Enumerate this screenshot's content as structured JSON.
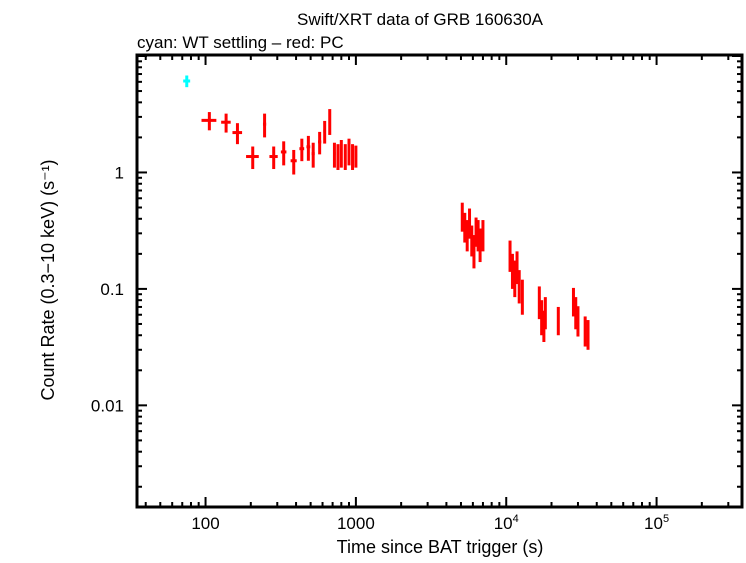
{
  "chart_data": {
    "type": "scatter",
    "title": "Swift/XRT data of GRB 160630A",
    "subtitle": "cyan: WT settling – red: PC",
    "xlabel": "Time since BAT trigger (s)",
    "ylabel": "Count Rate (0.3−10 keV) (s⁻¹)",
    "xscale": "log",
    "yscale": "log",
    "xlim": [
      35,
      370000
    ],
    "ylim": [
      0.00134,
      10.2
    ],
    "x_ticks": [
      {
        "v": 100,
        "label": "100"
      },
      {
        "v": 1000,
        "label": "1000"
      },
      {
        "v": 10000,
        "label": "10",
        "sup": "4"
      },
      {
        "v": 100000,
        "label": "10",
        "sup": "5"
      }
    ],
    "y_ticks": [
      {
        "v": 1,
        "label": "1"
      },
      {
        "v": 0.1,
        "label": "0.1"
      },
      {
        "v": 0.01,
        "label": "0.01"
      }
    ],
    "grid": false,
    "series": [
      {
        "color": "#00ffff",
        "points": [
          [
            75,
            6.1,
            4,
            0.7
          ]
        ]
      },
      {
        "color": "#ff0000",
        "points": [
          [
            106,
            2.8,
            12,
            0.5
          ],
          [
            137,
            2.7,
            10,
            0.5
          ],
          [
            163,
            2.2,
            12,
            0.45
          ],
          [
            206,
            1.37,
            20,
            0.3
          ],
          [
            247,
            2.6,
            6,
            0.6
          ],
          [
            284,
            1.37,
            18,
            0.3
          ],
          [
            331,
            1.5,
            14,
            0.35
          ],
          [
            386,
            1.26,
            18,
            0.3
          ],
          [
            437,
            1.6,
            16,
            0.35
          ],
          [
            483,
            1.66,
            14,
            0.4
          ],
          [
            520,
            1.45,
            12,
            0.35
          ],
          [
            574,
            1.83,
            14,
            0.4
          ],
          [
            620,
            2.27,
            12,
            0.5
          ],
          [
            670,
            2.8,
            8,
            0.7
          ],
          [
            720,
            1.45,
            14,
            0.35
          ],
          [
            760,
            1.4,
            12,
            0.35
          ],
          [
            800,
            1.5,
            14,
            0.4
          ],
          [
            850,
            1.4,
            14,
            0.35
          ],
          [
            900,
            1.55,
            16,
            0.4
          ],
          [
            950,
            1.4,
            14,
            0.35
          ],
          [
            1000,
            1.4,
            18,
            0.3
          ],
          [
            5100,
            0.43,
            60,
            0.12
          ],
          [
            5300,
            0.35,
            60,
            0.1
          ],
          [
            5500,
            0.3,
            60,
            0.09
          ],
          [
            5700,
            0.38,
            50,
            0.11
          ],
          [
            5900,
            0.27,
            60,
            0.08
          ],
          [
            6100,
            0.22,
            60,
            0.07
          ],
          [
            6300,
            0.32,
            60,
            0.09
          ],
          [
            6500,
            0.3,
            60,
            0.09
          ],
          [
            6700,
            0.25,
            60,
            0.08
          ],
          [
            7000,
            0.3,
            60,
            0.09
          ],
          [
            10600,
            0.2,
            100,
            0.06
          ],
          [
            11000,
            0.15,
            100,
            0.05
          ],
          [
            11400,
            0.13,
            100,
            0.045
          ],
          [
            11800,
            0.16,
            100,
            0.05
          ],
          [
            12200,
            0.11,
            100,
            0.035
          ],
          [
            12800,
            0.09,
            100,
            0.03
          ],
          [
            16600,
            0.08,
            120,
            0.025
          ],
          [
            17200,
            0.06,
            120,
            0.02
          ],
          [
            17800,
            0.05,
            120,
            0.015
          ],
          [
            18200,
            0.065,
            120,
            0.02
          ],
          [
            22200,
            0.055,
            200,
            0.015
          ],
          [
            28000,
            0.08,
            200,
            0.022
          ],
          [
            29000,
            0.065,
            200,
            0.02
          ],
          [
            30000,
            0.055,
            200,
            0.016
          ],
          [
            33500,
            0.045,
            250,
            0.013
          ],
          [
            35000,
            0.042,
            250,
            0.012
          ]
        ]
      }
    ]
  }
}
